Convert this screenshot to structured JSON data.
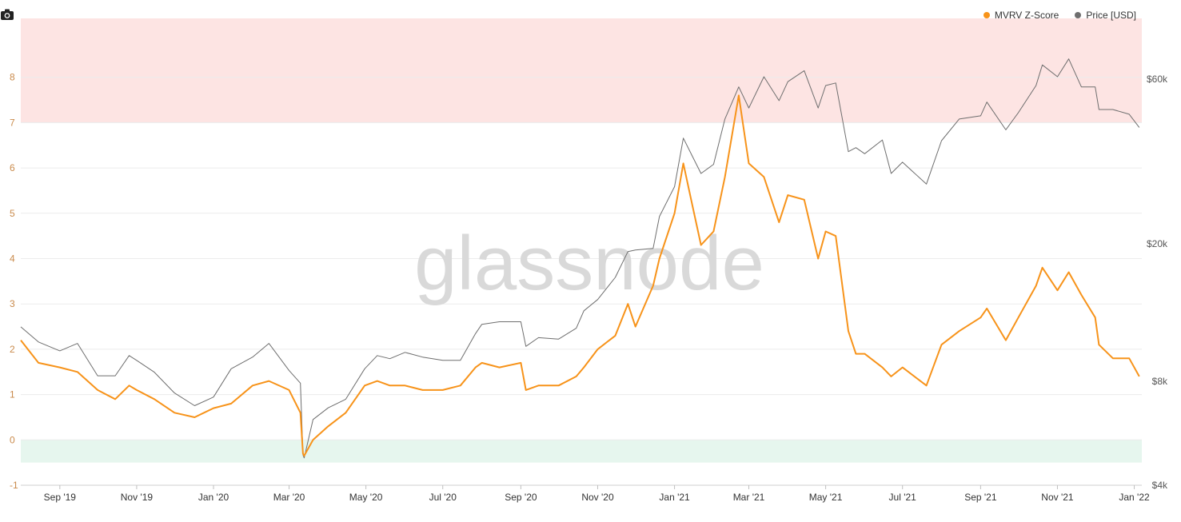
{
  "legend": {
    "mvrv_label": "MVRV Z-Score",
    "price_label": "Price [USD]"
  },
  "watermark": "glassnode",
  "colors": {
    "mvrv": "#f7931a",
    "price": "#6e6e6e",
    "red_band": "#fde4e3",
    "green_band": "#e6f6ee",
    "left_axis_text": "#c98a4b",
    "right_axis_text": "#555555",
    "grid": "#ececec",
    "watermark": "#d9d9d9"
  },
  "chart_data": {
    "type": "line",
    "x_tick_labels": [
      "Sep '19",
      "Nov '19",
      "Jan '20",
      "Mar '20",
      "May '20",
      "Jul '20",
      "Sep '20",
      "Nov '20",
      "Jan '21",
      "Mar '21",
      "May '21",
      "Jul '21",
      "Sep '21",
      "Nov '21",
      "Jan '22"
    ],
    "x_ticks": [
      "2019-09-01",
      "2019-11-01",
      "2020-01-01",
      "2020-03-01",
      "2020-05-01",
      "2020-07-01",
      "2020-09-01",
      "2020-11-01",
      "2021-01-01",
      "2021-03-01",
      "2021-05-01",
      "2021-07-01",
      "2021-09-01",
      "2021-11-01",
      "2022-01-01"
    ],
    "xlim": [
      "2019-08-01",
      "2022-01-07"
    ],
    "y_left": {
      "ticks": [
        -1,
        0,
        1,
        2,
        3,
        4,
        5,
        6,
        7,
        8
      ],
      "ylim": [
        -1,
        9.3
      ]
    },
    "y_right": {
      "scale": "log",
      "ticks": [
        4000,
        8000,
        20000,
        60000
      ],
      "tick_labels": [
        "$4k",
        "$8k",
        "$20k",
        "$60k"
      ],
      "ylim": [
        4000,
        90000
      ]
    },
    "bands": [
      {
        "zone": "overvalued",
        "from": 7,
        "to": 9.3
      },
      {
        "zone": "undervalued",
        "from": -0.5,
        "to": 0
      }
    ],
    "series": [
      {
        "name": "MVRV Z-Score",
        "axis": "left",
        "x": [
          "2019-08-01",
          "2019-08-15",
          "2019-09-01",
          "2019-09-15",
          "2019-10-01",
          "2019-10-15",
          "2019-10-26",
          "2019-11-01",
          "2019-11-15",
          "2019-12-01",
          "2019-12-17",
          "2020-01-01",
          "2020-01-15",
          "2020-02-01",
          "2020-02-14",
          "2020-03-01",
          "2020-03-10",
          "2020-03-12",
          "2020-03-13",
          "2020-03-20",
          "2020-04-01",
          "2020-04-15",
          "2020-04-30",
          "2020-05-10",
          "2020-05-20",
          "2020-06-01",
          "2020-06-15",
          "2020-07-01",
          "2020-07-15",
          "2020-07-27",
          "2020-08-01",
          "2020-08-15",
          "2020-09-01",
          "2020-09-05",
          "2020-09-15",
          "2020-10-01",
          "2020-10-15",
          "2020-10-21",
          "2020-11-01",
          "2020-11-15",
          "2020-11-25",
          "2020-12-01",
          "2020-12-15",
          "2020-12-20",
          "2021-01-01",
          "2021-01-08",
          "2021-01-15",
          "2021-01-22",
          "2021-02-01",
          "2021-02-10",
          "2021-02-21",
          "2021-03-01",
          "2021-03-13",
          "2021-03-25",
          "2021-04-01",
          "2021-04-14",
          "2021-04-25",
          "2021-05-01",
          "2021-05-09",
          "2021-05-19",
          "2021-05-25",
          "2021-06-01",
          "2021-06-15",
          "2021-06-22",
          "2021-07-01",
          "2021-07-20",
          "2021-08-01",
          "2021-08-15",
          "2021-09-01",
          "2021-09-06",
          "2021-09-21",
          "2021-10-01",
          "2021-10-15",
          "2021-10-20",
          "2021-11-01",
          "2021-11-10",
          "2021-11-20",
          "2021-12-01",
          "2021-12-04",
          "2021-12-15",
          "2021-12-28",
          "2022-01-05"
        ],
        "values": [
          2.2,
          1.7,
          1.6,
          1.5,
          1.1,
          0.9,
          1.2,
          1.1,
          0.9,
          0.6,
          0.5,
          0.7,
          0.8,
          1.2,
          1.3,
          1.1,
          0.6,
          -0.3,
          -0.35,
          0.0,
          0.3,
          0.6,
          1.2,
          1.3,
          1.2,
          1.2,
          1.1,
          1.1,
          1.2,
          1.6,
          1.7,
          1.6,
          1.7,
          1.1,
          1.2,
          1.2,
          1.4,
          1.6,
          2.0,
          2.3,
          3.0,
          2.5,
          3.4,
          4.0,
          5.0,
          6.1,
          5.2,
          4.3,
          4.6,
          5.8,
          7.6,
          6.1,
          5.8,
          4.8,
          5.4,
          5.3,
          4.0,
          4.6,
          4.5,
          2.4,
          1.9,
          1.9,
          1.6,
          1.4,
          1.6,
          1.2,
          2.1,
          2.4,
          2.7,
          2.9,
          2.2,
          2.7,
          3.4,
          3.8,
          3.3,
          3.7,
          3.2,
          2.7,
          2.1,
          1.8,
          1.8,
          1.4
        ]
      },
      {
        "name": "Price [USD]",
        "axis": "right",
        "x": [
          "2019-08-01",
          "2019-08-15",
          "2019-09-01",
          "2019-09-15",
          "2019-10-01",
          "2019-10-15",
          "2019-10-26",
          "2019-11-01",
          "2019-11-15",
          "2019-12-01",
          "2019-12-17",
          "2020-01-01",
          "2020-01-15",
          "2020-02-01",
          "2020-02-14",
          "2020-03-01",
          "2020-03-10",
          "2020-03-12",
          "2020-03-13",
          "2020-03-20",
          "2020-04-01",
          "2020-04-15",
          "2020-04-30",
          "2020-05-10",
          "2020-05-20",
          "2020-06-01",
          "2020-06-15",
          "2020-07-01",
          "2020-07-15",
          "2020-07-27",
          "2020-08-01",
          "2020-08-15",
          "2020-09-01",
          "2020-09-05",
          "2020-09-15",
          "2020-10-01",
          "2020-10-15",
          "2020-10-21",
          "2020-11-01",
          "2020-11-15",
          "2020-11-25",
          "2020-12-01",
          "2020-12-15",
          "2020-12-20",
          "2021-01-01",
          "2021-01-08",
          "2021-01-15",
          "2021-01-22",
          "2021-02-01",
          "2021-02-10",
          "2021-02-21",
          "2021-03-01",
          "2021-03-13",
          "2021-03-25",
          "2021-04-01",
          "2021-04-14",
          "2021-04-25",
          "2021-05-01",
          "2021-05-09",
          "2021-05-19",
          "2021-05-25",
          "2021-06-01",
          "2021-06-15",
          "2021-06-22",
          "2021-07-01",
          "2021-07-20",
          "2021-08-01",
          "2021-08-15",
          "2021-09-01",
          "2021-09-06",
          "2021-09-21",
          "2021-10-01",
          "2021-10-15",
          "2021-10-20",
          "2021-11-01",
          "2021-11-10",
          "2021-11-20",
          "2021-12-01",
          "2021-12-04",
          "2021-12-15",
          "2021-12-28",
          "2022-01-05"
        ],
        "values": [
          11500,
          10400,
          9800,
          10300,
          8300,
          8300,
          9500,
          9200,
          8500,
          7400,
          6800,
          7200,
          8700,
          9400,
          10300,
          8600,
          7900,
          4900,
          4800,
          6200,
          6700,
          7100,
          8700,
          9500,
          9300,
          9700,
          9400,
          9200,
          9200,
          11000,
          11700,
          11900,
          11900,
          10100,
          10700,
          10600,
          11400,
          12800,
          13800,
          16000,
          19000,
          19200,
          19400,
          24000,
          29300,
          40500,
          36000,
          32000,
          34000,
          46000,
          57000,
          49500,
          61000,
          52000,
          59000,
          63500,
          49500,
          57500,
          58500,
          37000,
          38000,
          36500,
          40000,
          32000,
          34500,
          29800,
          39800,
          46000,
          47000,
          51500,
          42800,
          48000,
          57500,
          66000,
          61000,
          68700,
          57000,
          57000,
          49000,
          49000,
          47500,
          43500
        ]
      }
    ]
  }
}
